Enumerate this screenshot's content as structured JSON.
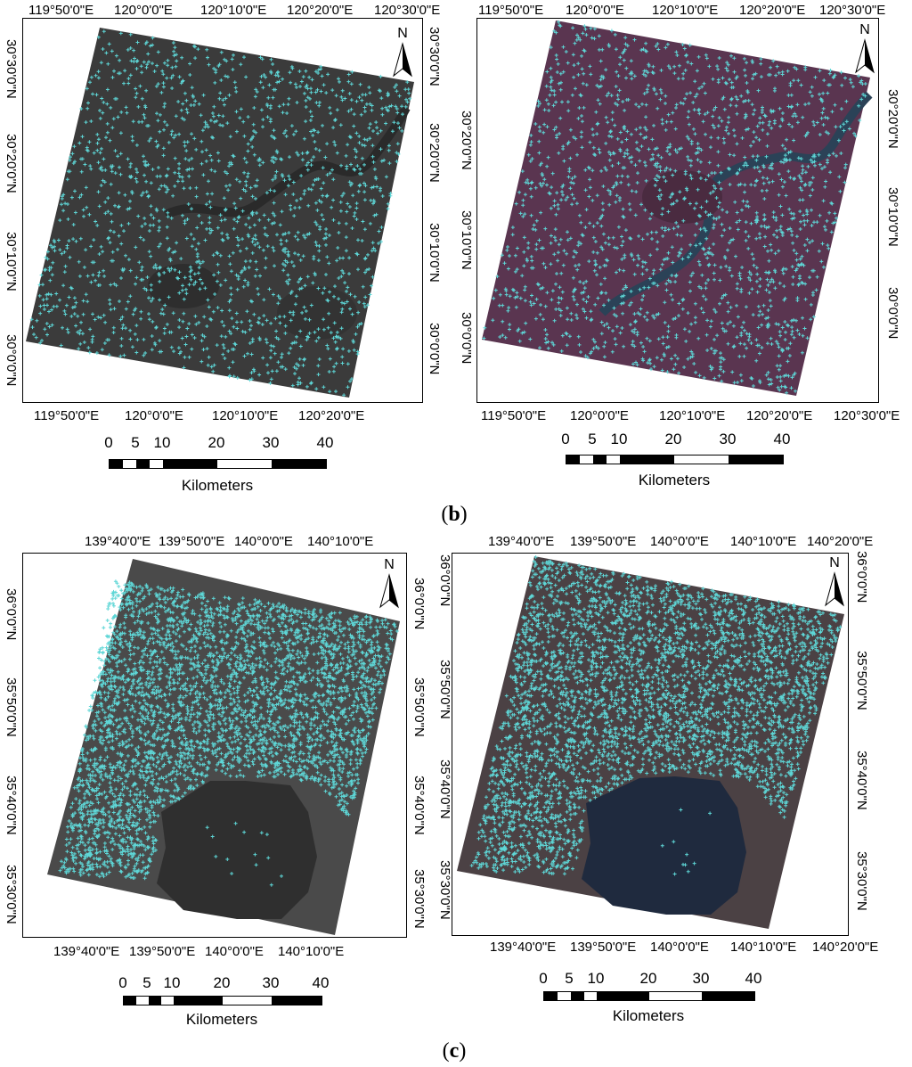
{
  "captions": {
    "b": "b",
    "c": "c"
  },
  "scale": {
    "ticks": [
      "0",
      "5",
      "10",
      "20",
      "30",
      "40"
    ],
    "unit": "Kilometers"
  },
  "north_label": "N",
  "colors": {
    "points": "#5ed6d6",
    "sar": "#3d3d3d",
    "optical": "#5b3650",
    "sar_c": "#4c4c4c",
    "optical_c": "#4a4044"
  },
  "panels": [
    {
      "id": "b-left",
      "image": "sar-grayscale-with-tie-points",
      "top_labels": [
        "119°50'0\"E",
        "120°0'0\"E",
        "120°10'0\"E",
        "120°20'0\"E",
        "120°30'0\"E"
      ],
      "bottom_labels": [
        "119°50'0\"E",
        "120°0'0\"E",
        "120°10'0\"E",
        "120°20'0\"E"
      ],
      "left_labels": [
        "30°30'0\"N",
        "30°20'0\"N",
        "30°10'0\"N",
        "30°0'0\"N"
      ],
      "right_labels": [
        "30°30'0\"N",
        "30°20'0\"N",
        "30°10'0\"N",
        "30°0'0\"N"
      ]
    },
    {
      "id": "b-right",
      "image": "optical-false-color-with-tie-points",
      "top_labels": [
        "119°50'0\"E",
        "120°0'0\"E",
        "120°10'0\"E",
        "120°20'0\"E",
        "120°30'0\"E"
      ],
      "bottom_labels": [
        "119°50'0\"E",
        "120°0'0\"E",
        "120°10'0\"E",
        "120°20'0\"E",
        "120°30'0\"E"
      ],
      "left_labels": [
        "30°20'0\"N",
        "30°10'0\"N",
        "30°0'0\"N"
      ],
      "right_labels": [
        "30°20'0\"N",
        "30°10'0\"N",
        "30°0'0\"N"
      ]
    },
    {
      "id": "c-left",
      "image": "sar-grayscale-with-tie-points",
      "top_labels": [
        "139°40'0\"E",
        "139°50'0\"E",
        "140°0'0\"E",
        "140°10'0\"E"
      ],
      "bottom_labels": [
        "139°40'0\"E",
        "139°50'0\"E",
        "140°0'0\"E",
        "140°10'0\"E"
      ],
      "left_labels": [
        "36°0'0\"N",
        "35°50'0\"N",
        "35°40'0\"N",
        "35°30'0\"N"
      ],
      "right_labels": [
        "36°0'0\"N",
        "35°50'0\"N",
        "35°40'0\"N",
        "35°30'0\"N"
      ]
    },
    {
      "id": "c-right",
      "image": "optical-true-color-with-tie-points",
      "top_labels": [
        "139°40'0\"E",
        "139°50'0\"E",
        "140°0'0\"E",
        "140°10'0\"E",
        "140°20'0\"E"
      ],
      "bottom_labels": [
        "139°40'0\"E",
        "139°50'0\"E",
        "140°0'0\"E",
        "140°10'0\"E",
        "140°20'0\"E"
      ],
      "left_labels": [
        "36°0'0\"N",
        "35°50'0\"N",
        "35°40'0\"N",
        "35°30'0\"N"
      ],
      "right_labels": [
        "36°0'0\"N",
        "35°50'0\"N",
        "35°40'0\"N",
        "35°30'0\"N"
      ]
    }
  ]
}
